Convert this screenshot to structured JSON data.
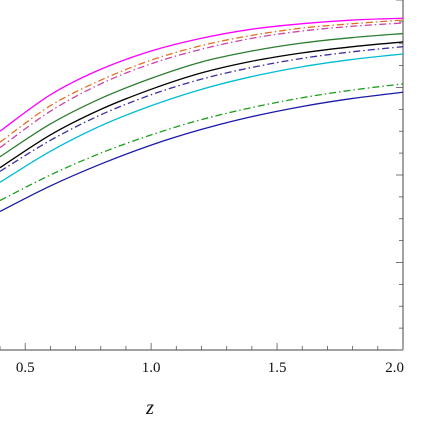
{
  "chart_data": {
    "type": "line",
    "xlabel": "z",
    "ylabel": "",
    "xlim": [
      0.4,
      2.0
    ],
    "x_ticks": [
      "0.5",
      "1.0",
      "1.5",
      "2.0"
    ],
    "x_tick_values": [
      0.5,
      1.0,
      1.5,
      2.0
    ],
    "grid": false,
    "series": [
      {
        "color": "#ff00ff",
        "dash": "solid",
        "x": [
          0.4,
          0.6,
          0.8,
          1.0,
          1.2,
          1.4,
          1.6,
          1.8,
          2.0
        ],
        "y": [
          0.6,
          0.7,
          0.77,
          0.82,
          0.855,
          0.88,
          0.895,
          0.905,
          0.91
        ]
      },
      {
        "color": "#e07020",
        "dash": "dashdot",
        "x": [
          0.4,
          0.6,
          0.8,
          1.0,
          1.2,
          1.4,
          1.6,
          1.8,
          2.0
        ],
        "y": [
          0.57,
          0.67,
          0.74,
          0.795,
          0.835,
          0.863,
          0.883,
          0.895,
          0.905
        ]
      },
      {
        "color": "#cc44aa",
        "dash": "dashdot",
        "x": [
          0.4,
          0.6,
          0.8,
          1.0,
          1.2,
          1.4,
          1.6,
          1.8,
          2.0
        ],
        "y": [
          0.555,
          0.655,
          0.73,
          0.785,
          0.825,
          0.855,
          0.875,
          0.888,
          0.897
        ]
      },
      {
        "color": "#2e7d32",
        "dash": "solid",
        "x": [
          0.4,
          0.6,
          0.8,
          1.0,
          1.2,
          1.4,
          1.6,
          1.8,
          2.0
        ],
        "y": [
          0.53,
          0.62,
          0.69,
          0.745,
          0.79,
          0.82,
          0.842,
          0.857,
          0.868
        ]
      },
      {
        "color": "#000000",
        "dash": "solid",
        "x": [
          0.4,
          0.6,
          0.8,
          1.0,
          1.2,
          1.4,
          1.6,
          1.8,
          2.0
        ],
        "y": [
          0.5,
          0.59,
          0.66,
          0.715,
          0.76,
          0.792,
          0.815,
          0.832,
          0.845
        ]
      },
      {
        "color": "#3a2ea0",
        "dash": "dashdot",
        "x": [
          0.4,
          0.6,
          0.8,
          1.0,
          1.2,
          1.4,
          1.6,
          1.8,
          2.0
        ],
        "y": [
          0.49,
          0.575,
          0.645,
          0.7,
          0.743,
          0.775,
          0.8,
          0.818,
          0.832
        ]
      },
      {
        "color": "#00bcd4",
        "dash": "solid",
        "x": [
          0.4,
          0.6,
          0.8,
          1.0,
          1.2,
          1.4,
          1.6,
          1.8,
          2.0
        ],
        "y": [
          0.46,
          0.545,
          0.615,
          0.67,
          0.715,
          0.75,
          0.777,
          0.797,
          0.812
        ]
      },
      {
        "color": "#1a9e1a",
        "dash": "dashdot",
        "x": [
          0.4,
          0.6,
          0.8,
          1.0,
          1.2,
          1.4,
          1.6,
          1.8,
          2.0
        ],
        "y": [
          0.41,
          0.48,
          0.54,
          0.59,
          0.632,
          0.665,
          0.692,
          0.713,
          0.73
        ]
      },
      {
        "color": "#1a1aa8",
        "dash": "solid",
        "x": [
          0.4,
          0.6,
          0.8,
          1.0,
          1.2,
          1.4,
          1.6,
          1.8,
          2.0
        ],
        "y": [
          0.38,
          0.45,
          0.51,
          0.562,
          0.605,
          0.64,
          0.668,
          0.69,
          0.707
        ]
      }
    ]
  }
}
